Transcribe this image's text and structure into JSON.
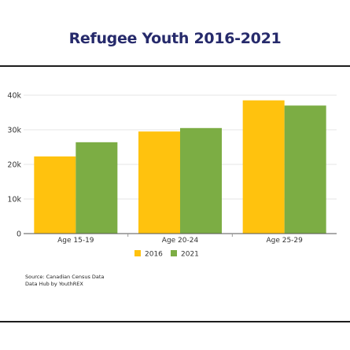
{
  "title": "Refugee Youth 2016-2021",
  "source": {
    "line1": "Source: Canadian Census Data",
    "line2": "Data Hub by YouthREX"
  },
  "chart_data": {
    "type": "bar",
    "title": "Refugee Youth 2016-2021",
    "xlabel": "",
    "ylabel": "",
    "categories": [
      "Age 15-19",
      "Age 20-24",
      "Age 25-29"
    ],
    "series": [
      {
        "name": "2016",
        "color": "#ffc20e",
        "values": [
          22300,
          29500,
          38500
        ]
      },
      {
        "name": "2021",
        "color": "#7cad44",
        "values": [
          26400,
          30500,
          37000
        ]
      }
    ],
    "ylim": [
      0,
      40000
    ],
    "yticks": [
      0,
      10000,
      20000,
      30000,
      40000
    ],
    "ytick_labels": [
      "0",
      "10k",
      "20k",
      "30k",
      "40k"
    ],
    "grid": true,
    "legend": "bottom-center"
  }
}
